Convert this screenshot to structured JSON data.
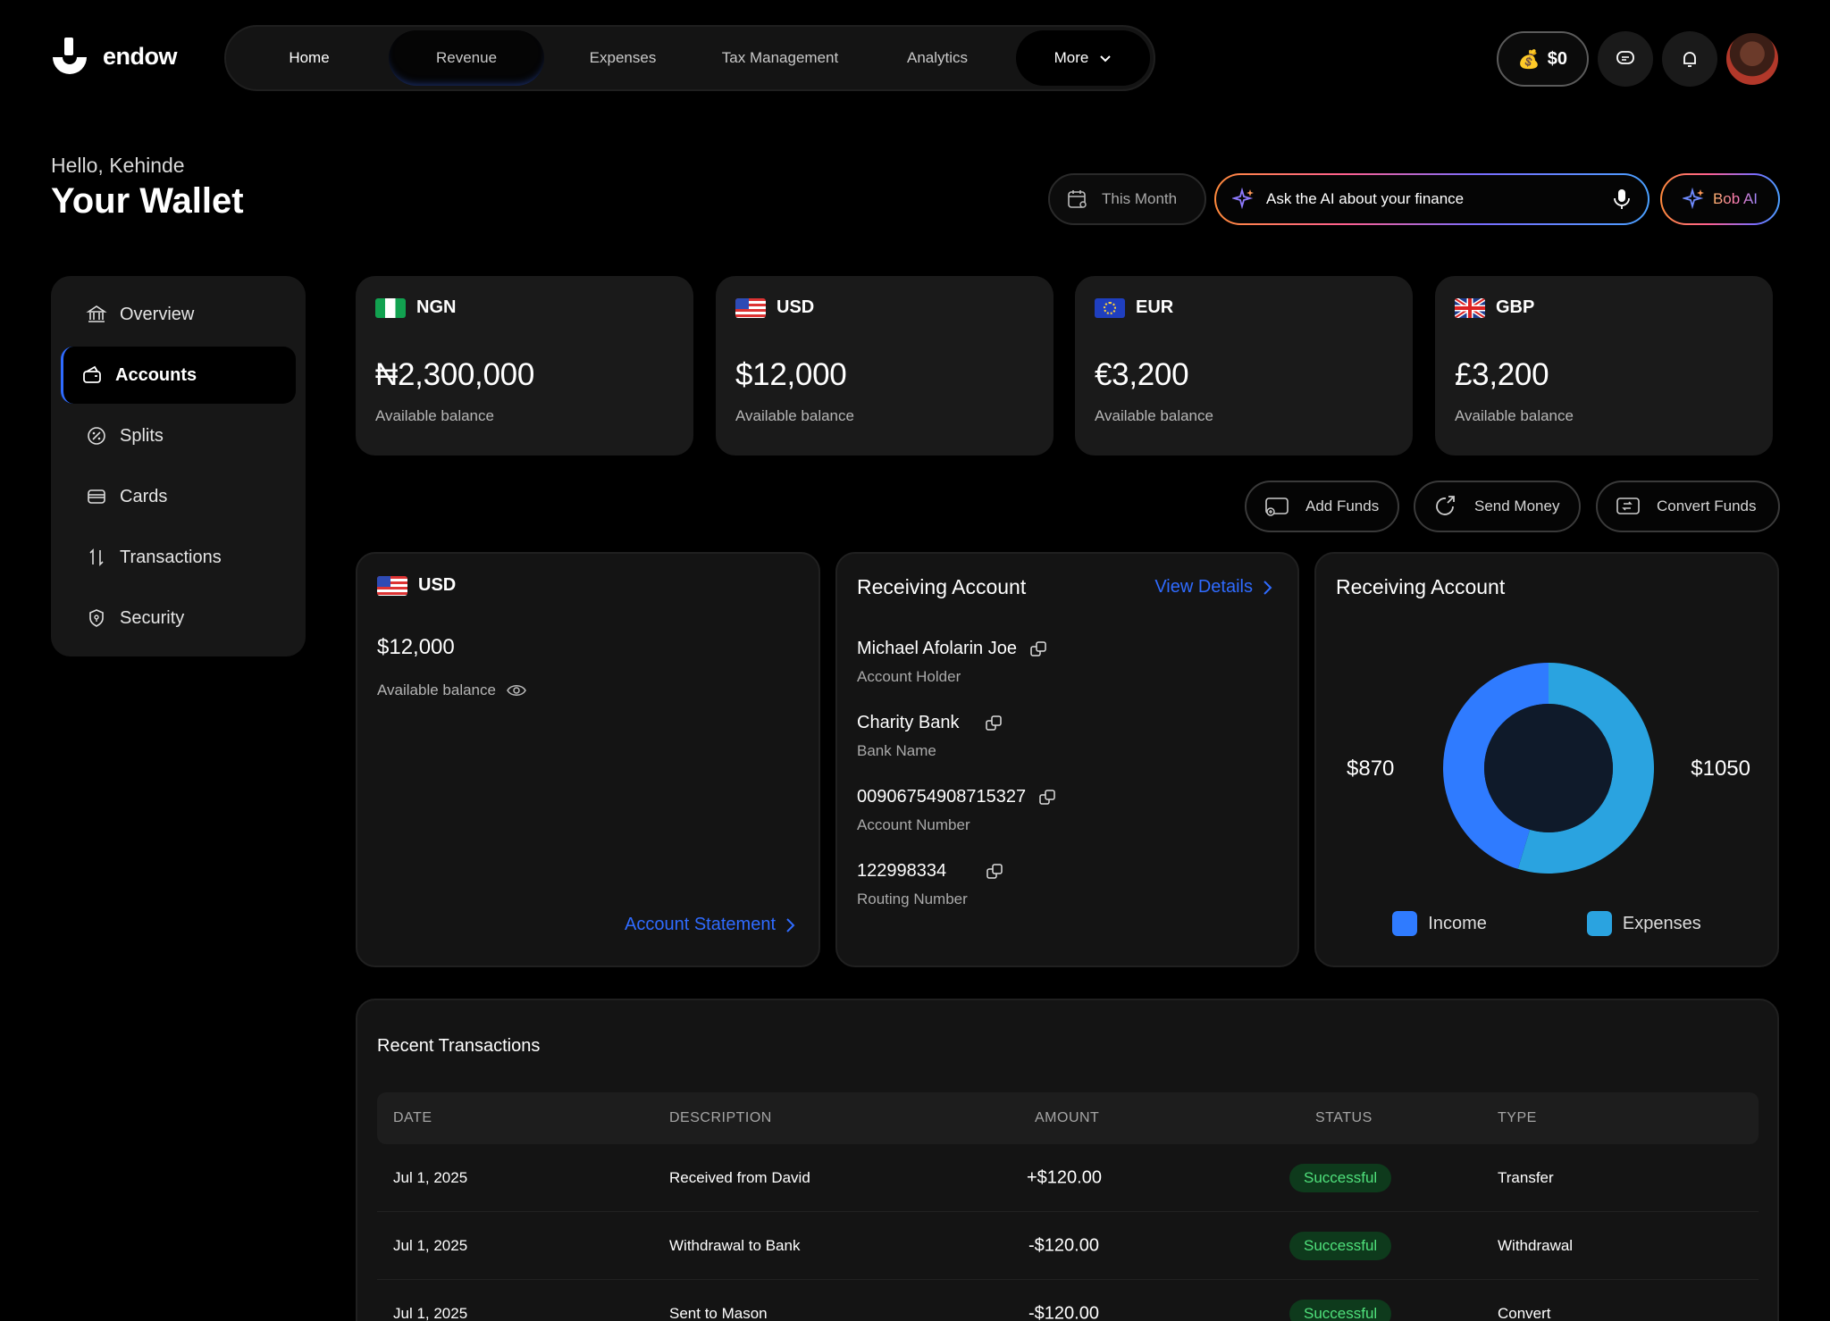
{
  "app": {
    "name": "endow"
  },
  "nav": {
    "items": [
      "Home",
      "Revenue",
      "Expenses",
      "Tax Management",
      "Analytics"
    ],
    "more_label": "More"
  },
  "topbar": {
    "balance_emoji": "💰",
    "balance": "$0"
  },
  "header": {
    "greeting": "Hello, Kehinde",
    "title": "Your Wallet"
  },
  "filters": {
    "period": "This Month",
    "ai_placeholder": "Ask the AI about your finance",
    "bob_label": "Bob AI"
  },
  "sidebar": {
    "items": [
      {
        "label": "Overview",
        "icon": "bank-icon"
      },
      {
        "label": "Accounts",
        "icon": "wallet-icon",
        "active": true
      },
      {
        "label": "Splits",
        "icon": "percent-icon"
      },
      {
        "label": "Cards",
        "icon": "card-icon"
      },
      {
        "label": "Transactions",
        "icon": "arrows-icon"
      },
      {
        "label": "Security",
        "icon": "shield-icon"
      }
    ]
  },
  "balances": [
    {
      "currency": "NGN",
      "amount": "₦2,300,000",
      "label": "Available balance",
      "flag": "ng"
    },
    {
      "currency": "USD",
      "amount": "$12,000",
      "label": "Available balance",
      "flag": "us"
    },
    {
      "currency": "EUR",
      "amount": "€3,200",
      "label": "Available balance",
      "flag": "eu"
    },
    {
      "currency": "GBP",
      "amount": "£3,200",
      "label": "Available balance",
      "flag": "gb"
    }
  ],
  "actions": {
    "add": "Add Funds",
    "send": "Send Money",
    "convert": "Convert Funds"
  },
  "usd_panel": {
    "currency": "USD",
    "amount": "$12,000",
    "label": "Available balance",
    "statement_link": "Account Statement"
  },
  "receiving": {
    "title": "Receiving Account",
    "view_details": "View Details",
    "fields": [
      {
        "value": "Michael Afolarin Joe",
        "label": "Account Holder"
      },
      {
        "value": "Charity Bank",
        "label": "Bank Name"
      },
      {
        "value": "00906754908715327",
        "label": "Account Number"
      },
      {
        "value": "122998334",
        "label": "Routing Number"
      }
    ]
  },
  "chart_panel": {
    "title": "Receiving Account"
  },
  "chart_data": {
    "type": "pie",
    "categories": [
      "Income",
      "Expenses"
    ],
    "values": [
      870,
      1050
    ],
    "data_labels": [
      "$870",
      "$1050"
    ],
    "colors": {
      "Income": "#2f7bff",
      "Expenses": "#2aa3e0"
    },
    "legend": "bottom"
  },
  "transactions": {
    "title": "Recent Transactions",
    "columns": [
      "DATE",
      "DESCRIPTION",
      "AMOUNT",
      "STATUS",
      "TYPE"
    ],
    "rows": [
      {
        "date": "Jul 1, 2025",
        "description": "Received from David",
        "amount": "+$120.00",
        "status": "Successful",
        "type": "Transfer"
      },
      {
        "date": "Jul 1, 2025",
        "description": "Withdrawal to Bank",
        "amount": "-$120.00",
        "status": "Successful",
        "type": "Withdrawal"
      },
      {
        "date": "Jul 1, 2025",
        "description": "Sent to Mason",
        "amount": "-$120.00",
        "status": "Successful",
        "type": "Convert"
      }
    ]
  }
}
